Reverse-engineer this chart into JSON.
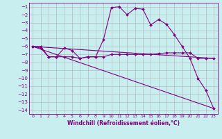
{
  "xlabel": "Windchill (Refroidissement éolien,°C)",
  "background_color": "#c8eef0",
  "grid_color": "#b0b0b0",
  "line_color": "#800080",
  "x_ticks": [
    0,
    1,
    2,
    3,
    4,
    5,
    6,
    7,
    8,
    9,
    10,
    11,
    12,
    13,
    14,
    15,
    16,
    17,
    18,
    19,
    20,
    21,
    22,
    23
  ],
  "ylim": [
    -14.5,
    -0.5
  ],
  "xlim": [
    -0.5,
    23.5
  ],
  "yticks": [
    -1,
    -2,
    -3,
    -4,
    -5,
    -6,
    -7,
    -8,
    -9,
    -10,
    -11,
    -12,
    -13,
    -14
  ],
  "series": [
    {
      "x": [
        0,
        1,
        2,
        3,
        4,
        5,
        6,
        7,
        8,
        9,
        10,
        11,
        12,
        13,
        14,
        15,
        16,
        17,
        18,
        19,
        20,
        21,
        22,
        23
      ],
      "y": [
        -6.0,
        -6.2,
        -7.3,
        -7.3,
        -6.2,
        -6.5,
        -7.5,
        -7.3,
        -7.3,
        -5.1,
        -1.1,
        -1.0,
        -2.0,
        -1.2,
        -1.3,
        -3.3,
        -2.6,
        -3.2,
        -4.5,
        -6.0,
        -7.5,
        -10.0,
        -11.5,
        -13.8
      ],
      "marker": "D",
      "markersize": 2.0
    },
    {
      "x": [
        0,
        1,
        2,
        3,
        4,
        5,
        6,
        7,
        8,
        9,
        10,
        11,
        12,
        13,
        14,
        15,
        16,
        17,
        18,
        19,
        20,
        21,
        22,
        23
      ],
      "y": [
        -6.0,
        -6.0,
        -7.3,
        -7.3,
        -7.3,
        -7.3,
        -7.5,
        -7.3,
        -7.3,
        -7.3,
        -7.0,
        -7.0,
        -7.0,
        -7.0,
        -7.0,
        -7.0,
        -6.9,
        -6.8,
        -6.8,
        -6.8,
        -6.8,
        -7.5,
        -7.5,
        -7.5
      ],
      "marker": "D",
      "markersize": 2.0
    },
    {
      "x": [
        0,
        23
      ],
      "y": [
        -6.0,
        -7.5
      ],
      "marker": null,
      "markersize": 0
    },
    {
      "x": [
        0,
        23
      ],
      "y": [
        -6.0,
        -13.8
      ],
      "marker": null,
      "markersize": 0
    }
  ]
}
